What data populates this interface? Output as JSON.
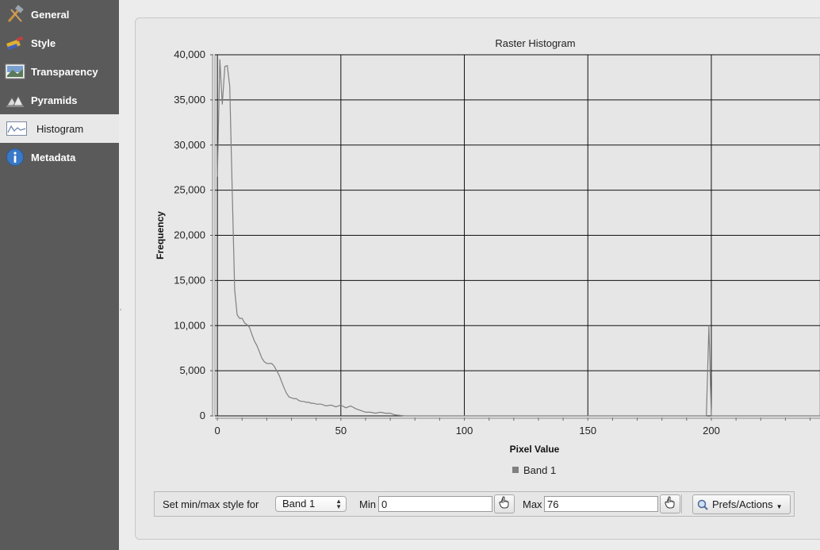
{
  "sidebar": {
    "items": [
      {
        "label": "General",
        "icon": "hammer-icon"
      },
      {
        "label": "Style",
        "icon": "paintbrush-icon"
      },
      {
        "label": "Transparency",
        "icon": "transparency-icon"
      },
      {
        "label": "Pyramids",
        "icon": "pyramids-icon"
      },
      {
        "label": "Histogram",
        "icon": "histogram-icon",
        "active": true
      },
      {
        "label": "Metadata",
        "icon": "info-icon"
      }
    ]
  },
  "chart_data": {
    "type": "line",
    "title": "Raster Histogram",
    "xlabel": "Pixel Value",
    "ylabel": "Frequency",
    "xlim": [
      -1,
      244
    ],
    "ylim": [
      0,
      40000
    ],
    "grid": true,
    "legend_position": "bottom",
    "x_ticks": [
      0,
      50,
      100,
      150,
      200
    ],
    "x_tick_labels": [
      "0",
      "50",
      "100",
      "150",
      "200"
    ],
    "y_ticks": [
      0,
      5000,
      10000,
      15000,
      20000,
      25000,
      30000,
      35000,
      40000
    ],
    "y_tick_labels": [
      "0",
      "5,000",
      "10,000",
      "15,000",
      "20,000",
      "25,000",
      "30,000",
      "35,000",
      "40,000"
    ],
    "series": [
      {
        "name": "Band 1",
        "color": "#808080",
        "x": [
          0,
          1,
          2,
          3,
          4,
          5,
          6,
          7,
          8,
          9,
          10,
          11,
          12,
          13,
          14,
          15,
          16,
          17,
          18,
          19,
          20,
          21,
          22,
          23,
          24,
          25,
          26,
          27,
          28,
          29,
          30,
          31,
          32,
          33,
          34,
          35,
          36,
          37,
          38,
          39,
          40,
          42,
          44,
          46,
          48,
          50,
          52,
          54,
          56,
          58,
          60,
          62,
          64,
          66,
          68,
          70,
          72,
          74,
          76,
          78,
          80,
          100,
          150,
          198,
          199,
          200,
          201,
          202,
          244
        ],
        "y": [
          26500,
          39500,
          34500,
          38700,
          38800,
          36500,
          25000,
          14000,
          11200,
          10800,
          10800,
          10300,
          10100,
          9800,
          9000,
          8300,
          7800,
          7100,
          6400,
          6000,
          5800,
          5800,
          5800,
          5500,
          5000,
          4500,
          3800,
          3100,
          2500,
          2100,
          2000,
          1900,
          1900,
          1700,
          1600,
          1600,
          1500,
          1500,
          1400,
          1400,
          1300,
          1300,
          1100,
          1200,
          1000,
          1200,
          900,
          1100,
          800,
          600,
          400,
          400,
          300,
          400,
          300,
          300,
          100,
          50,
          0,
          0,
          0,
          0,
          0,
          0,
          10000,
          0,
          0,
          0,
          0
        ]
      }
    ]
  },
  "controls": {
    "style_label": "Set min/max style for",
    "band_selected": "Band 1",
    "min_label": "Min",
    "min_value": "0",
    "max_label": "Max",
    "max_value": "76",
    "prefs_label": "Prefs/Actions"
  },
  "colors": {
    "sidebar_bg": "#5a5a5a",
    "plot_bg": "#e6e6e6",
    "series": "#808080"
  }
}
